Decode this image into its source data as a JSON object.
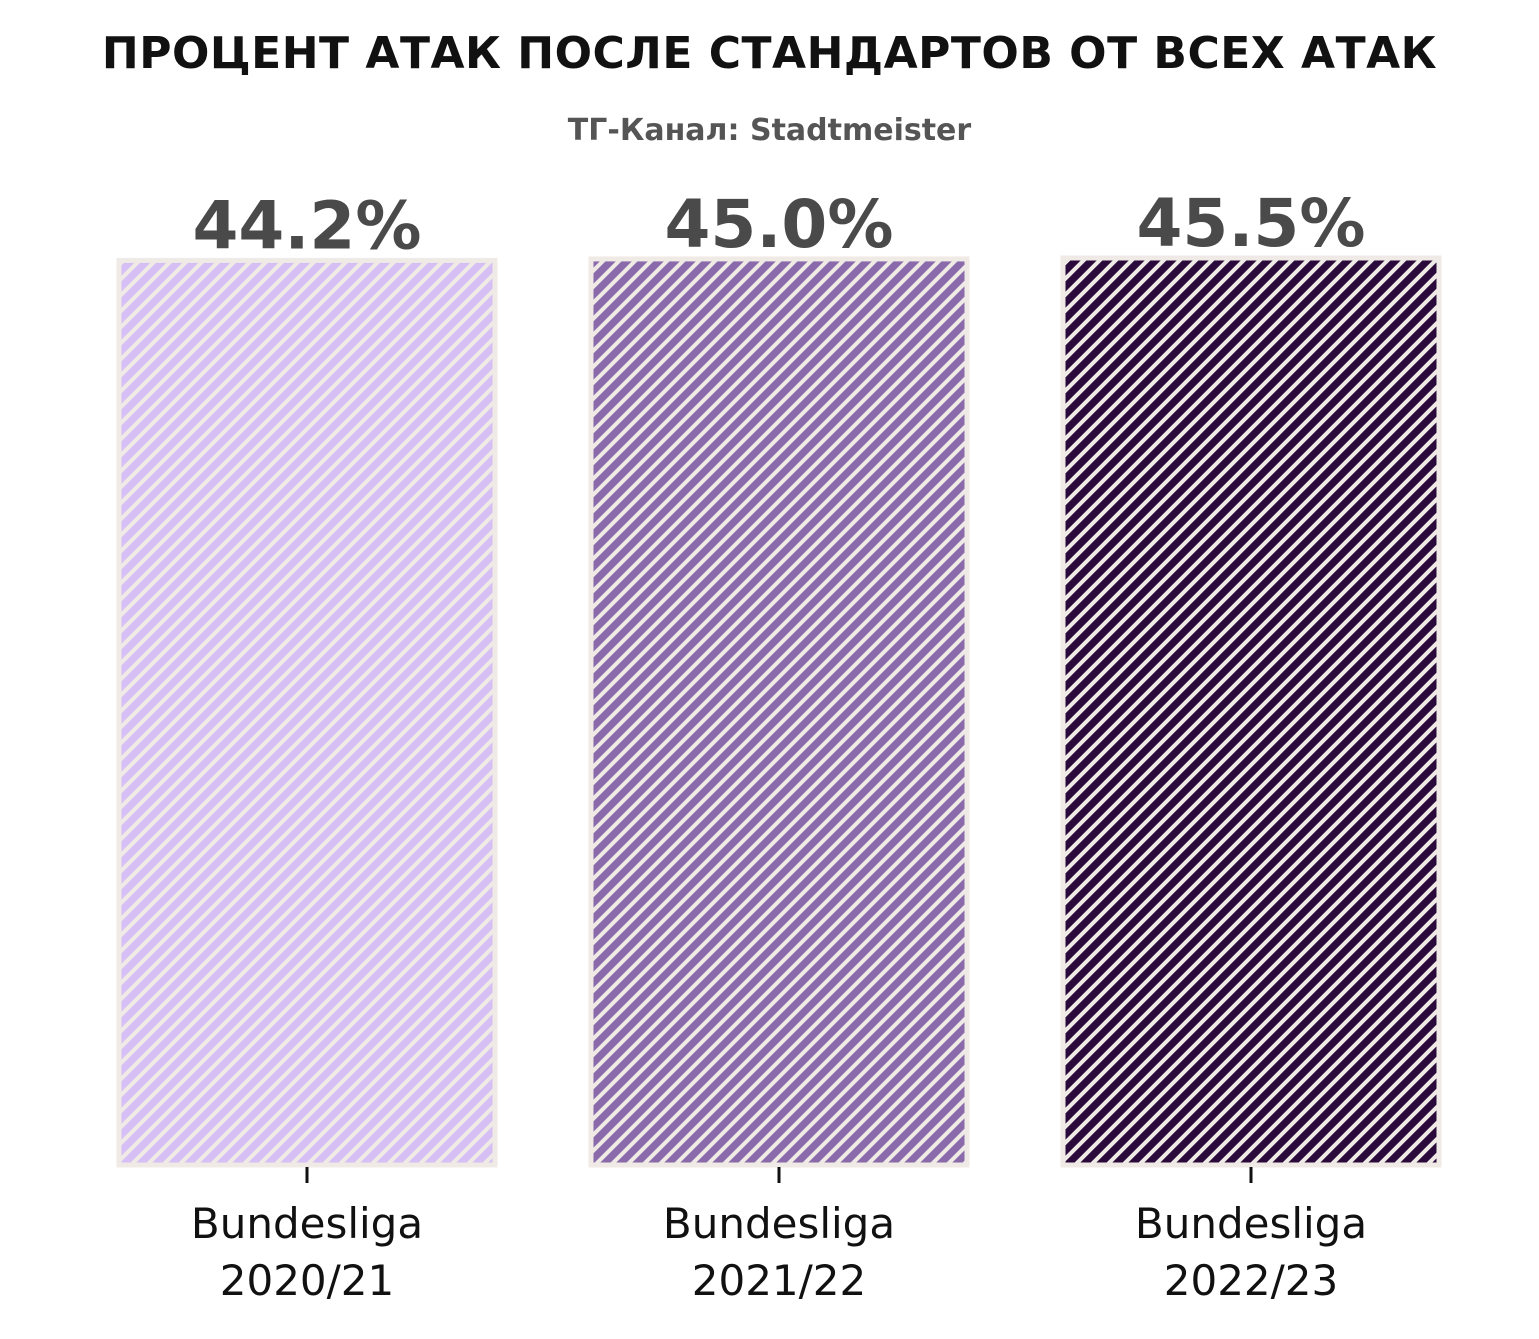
{
  "chart_data": {
    "type": "bar",
    "title": "ПРОЦЕНТ АТАК ПОСЛЕ СТАНДАРТОВ ОТ ВСЕХ АТАК",
    "subtitle": "ТГ-Канал: Stadtmeister",
    "categories": [
      [
        "Bundesliga",
        "2020/21"
      ],
      [
        "Bundesliga",
        "2021/22"
      ],
      [
        "Bundesliga",
        "2022/23"
      ]
    ],
    "values": [
      44.2,
      45.0,
      45.5
    ],
    "value_labels": [
      "44.2%",
      "45.0%",
      "45.5%"
    ],
    "colors": [
      "#d5bff5",
      "#8a6aaa",
      "#2a0a3a"
    ],
    "hatch_color": "#f0eae6",
    "edge_color": "#f0eae6",
    "ylim": [
      0,
      45.5
    ],
    "xlabel": "",
    "ylabel": "",
    "grid": false,
    "legend": "none",
    "hatch": "diagonal stripes"
  }
}
